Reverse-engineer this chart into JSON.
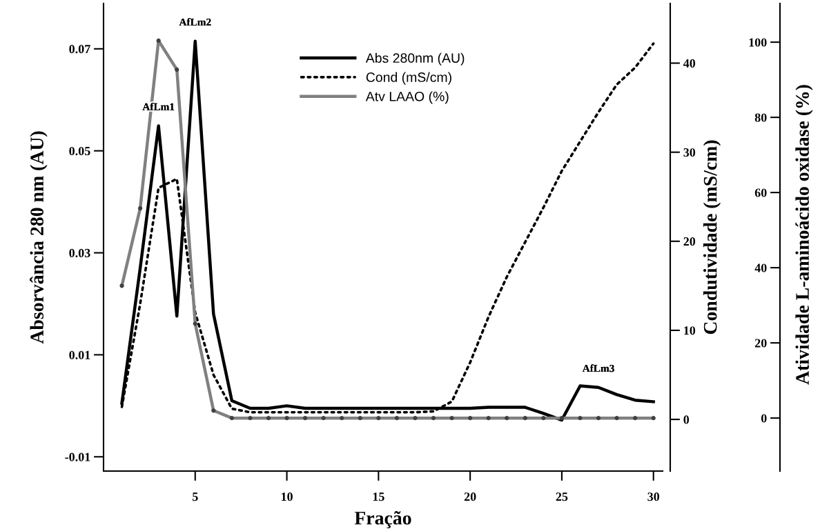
{
  "chart_data": {
    "type": "line",
    "xlabel": "Fração",
    "ylabel": "Absorvância 280 nm (AU)",
    "y2label": "Condutividade (mS/cm)",
    "y3label": "Atividade L-aminoácido oxidase (%)",
    "x": [
      1,
      2,
      3,
      4,
      5,
      6,
      7,
      8,
      9,
      10,
      11,
      12,
      13,
      14,
      15,
      16,
      17,
      18,
      19,
      20,
      21,
      22,
      23,
      24,
      25,
      26,
      27,
      28,
      29,
      30
    ],
    "series": [
      {
        "name": "Abs 280nm (AU)",
        "color": "#000000",
        "line_style": "solid",
        "marker": "none",
        "values": [
          0.0005,
          0.027,
          0.0549,
          0.0176,
          0.0715,
          0.018,
          0.001,
          -0.0005,
          -0.0005,
          0.0,
          -0.0005,
          -0.0005,
          -0.0005,
          -0.0005,
          -0.0005,
          -0.0005,
          -0.0005,
          -0.0005,
          -0.0005,
          -0.0005,
          -0.0003,
          -0.0003,
          -0.0003,
          -0.0015,
          -0.0028,
          0.0039,
          0.0036,
          0.0022,
          0.0011,
          0.0008
        ]
      },
      {
        "name": "Cond (mS/cm)",
        "color": "#000000",
        "line_style": "dotted",
        "marker": "none",
        "axis": "y2",
        "values": [
          1.4,
          13,
          26,
          27,
          12,
          5,
          1.2,
          0.8,
          0.8,
          0.8,
          0.8,
          0.8,
          0.8,
          0.8,
          0.8,
          0.8,
          0.8,
          0.9,
          2.0,
          6.4,
          11.5,
          16.0,
          19.9,
          23.8,
          27.9,
          31.2,
          34.5,
          37.6,
          39.5,
          42.2
        ]
      },
      {
        "name": "Atv LAAO (%)",
        "color": "#808080",
        "line_style": "solid",
        "marker": "circle",
        "axis": "y3",
        "values": [
          35.2,
          55.8,
          100.4,
          92.7,
          25.1,
          2,
          0,
          0,
          0,
          0,
          0,
          0,
          0,
          0,
          0,
          0,
          0,
          0,
          0,
          0,
          0,
          0,
          0,
          0,
          0,
          0,
          0,
          0,
          0,
          0
        ]
      }
    ],
    "xlim": [
      0,
      30.5
    ],
    "xticks": [
      5,
      10,
      15,
      20,
      25,
      30
    ],
    "ylim": [
      -0.0128,
      0.0789
    ],
    "yticks": [
      -0.01,
      0.01,
      0.03,
      0.05,
      0.07
    ],
    "y2lim": [
      -5.8,
      46.7
    ],
    "y2ticks": [
      0,
      10,
      20,
      30,
      40
    ],
    "y3lim": [
      -14.1,
      110.3
    ],
    "y3ticks": [
      0,
      20,
      40,
      60,
      80,
      100
    ],
    "legend": "top",
    "grid": false,
    "annotations": [
      {
        "text": "AfLm1",
        "x": 3,
        "y": 0.0549
      },
      {
        "text": "AfLm2",
        "x": 5,
        "y": 0.0715
      },
      {
        "text": "AfLm3",
        "x": 27,
        "y": 0.0036
      }
    ]
  }
}
